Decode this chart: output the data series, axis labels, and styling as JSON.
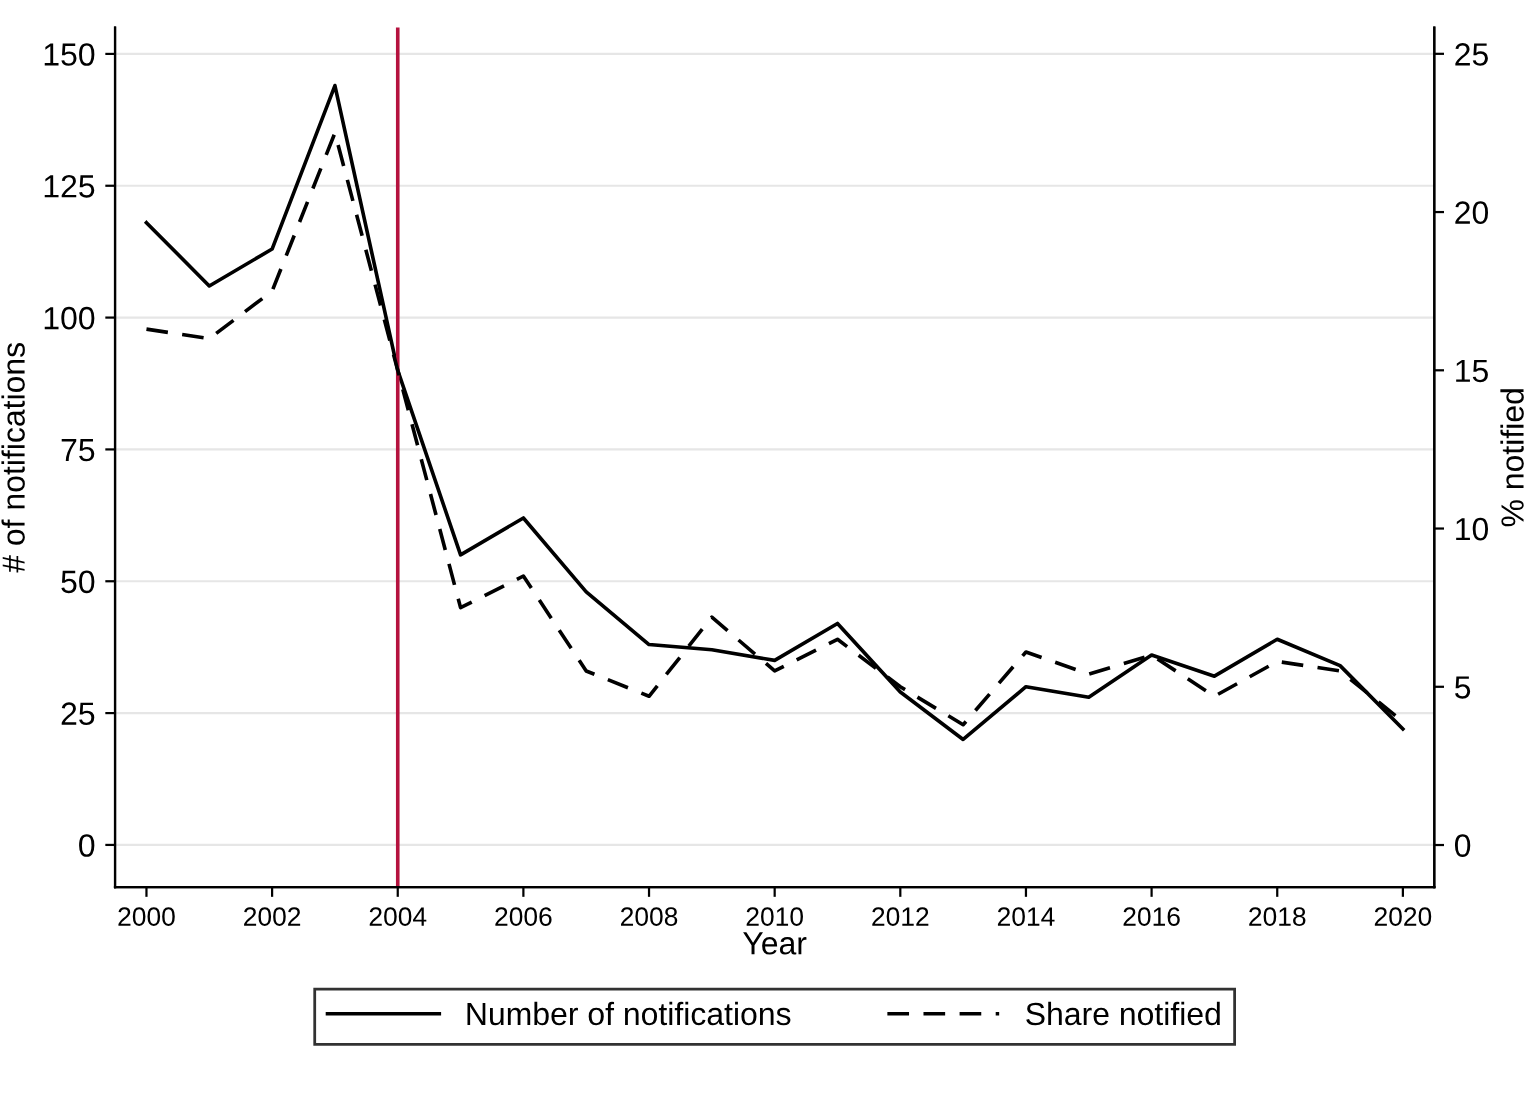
{
  "chart_data": {
    "type": "line",
    "xlabel": "Year",
    "ylabel": "# of notifications",
    "y2label": "% notified",
    "x": [
      2000,
      2001,
      2002,
      2003,
      2004,
      2005,
      2006,
      2007,
      2008,
      2009,
      2010,
      2011,
      2012,
      2013,
      2014,
      2015,
      2016,
      2017,
      2018,
      2019,
      2020
    ],
    "series": [
      {
        "name": "Number of notifications",
        "color": "#000000",
        "line_style": "solid",
        "values": [
          118,
          106,
          113,
          144,
          90,
          55,
          62,
          48,
          38,
          37,
          35,
          42,
          29,
          20,
          30,
          28,
          36,
          32,
          39,
          34,
          22
        ]
      },
      {
        "name": "Share notified",
        "color": "#000000",
        "line_style": "dashed",
        "axis": "y2",
        "values": [
          16.3,
          16.0,
          17.5,
          22.5,
          15.0,
          7.5,
          8.5,
          5.5,
          4.7,
          7.2,
          5.5,
          6.5,
          5.0,
          3.8,
          6.1,
          5.4,
          6.0,
          4.7,
          5.8,
          5.5,
          3.9
        ]
      }
    ],
    "xlim": [
      1999.5,
      2020.5
    ],
    "xticks": [
      2000,
      2002,
      2004,
      2006,
      2008,
      2010,
      2012,
      2014,
      2016,
      2018,
      2020
    ],
    "ylim": [
      -8,
      155
    ],
    "yticks": [
      0,
      25,
      50,
      75,
      100,
      125,
      150
    ],
    "y2lim": [
      -1.33,
      25.83
    ],
    "y2ticks": [
      0,
      5,
      10,
      15,
      20,
      25
    ],
    "ref_lines": [
      {
        "axis": "x",
        "value": 2004,
        "color": "#b5123e",
        "line_style": "solid"
      }
    ],
    "grid": "y",
    "legend": "bottom",
    "marker": "none"
  }
}
